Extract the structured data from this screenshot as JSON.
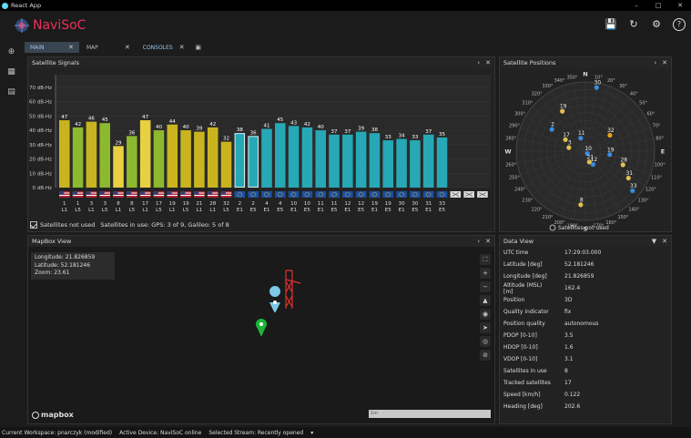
{
  "window": {
    "title": "React App",
    "controls": [
      "–",
      "□",
      "✕"
    ]
  },
  "header": {
    "brand": "NaviSoC"
  },
  "tabs": [
    {
      "label": "MAIN",
      "active": true
    },
    {
      "label": "MAP",
      "active": false
    },
    {
      "label": "CONSOLES",
      "active": false
    }
  ],
  "panels": {
    "signals": "Satellite Signals",
    "positions": "Satellite Positions",
    "map": "MapBox View",
    "dataview": "Data View"
  },
  "signals_footer": {
    "checkbox_label": "Satellites not used",
    "in_use": "Satellites in use: GPS: 3 of 9, Galileo: 5 of 8"
  },
  "chart_data": {
    "type": "bar",
    "ylabel_unit": "dB-Hz",
    "y_ticks": [
      "0 dB-Hz",
      "10 dB-Hz",
      "20 dB-Hz",
      "30 dB-Hz",
      "40 dB-Hz",
      "50 dB-Hz",
      "60 dB-Hz",
      "70 dB-Hz"
    ],
    "ylim": [
      0,
      75
    ],
    "values": [
      47,
      42,
      46,
      45,
      29,
      36,
      47,
      40,
      44,
      40,
      39,
      42,
      32,
      38,
      36,
      41,
      45,
      43,
      42,
      40,
      37,
      37,
      39,
      38,
      33,
      34,
      33,
      37,
      35
    ],
    "ids": [
      "1",
      "1",
      "3",
      "3",
      "8",
      "8",
      "17",
      "17",
      "19",
      "19",
      "21",
      "28",
      "32",
      "2",
      "2",
      "4",
      "4",
      "10",
      "10",
      "11",
      "11",
      "12",
      "12",
      "19",
      "19",
      "30",
      "30",
      "31",
      "33"
    ],
    "bands": [
      "L1",
      "L5",
      "L1",
      "L5",
      "L1",
      "L5",
      "L1",
      "L5",
      "L1",
      "L5",
      "L1",
      "L1",
      "L5",
      "E1",
      "E5",
      "E1",
      "E5",
      "E1",
      "E5",
      "E1",
      "E5",
      "E1",
      "E5",
      "E1",
      "E5",
      "E1",
      "E5",
      "E1",
      "E5"
    ],
    "colors": [
      "#c9b420",
      "#8db92e",
      "#c9b420",
      "#8db92e",
      "#e8d040",
      "#8db92e",
      "#e8d040",
      "#8db92e",
      "#c9b420",
      "#c9b420",
      "#c9b420",
      "#c9b420",
      "#c9b420",
      "#27a8b6",
      "#27a8b6",
      "#27a8b6",
      "#27a8b6",
      "#27a8b6",
      "#27a8b6",
      "#27a8b6",
      "#27a8b6",
      "#27a8b6",
      "#27a8b6",
      "#27a8b6",
      "#27a8b6",
      "#27a8b6",
      "#27a8b6",
      "#27a8b6",
      "#27a8b6"
    ],
    "not_used_slots": 3
  },
  "polar": {
    "compass": [
      "N",
      "E",
      "S",
      "W"
    ],
    "legend": "Satellites not used",
    "satellites": [
      {
        "id": "30",
        "az": 10,
        "el": 84,
        "color": "#3b8be0"
      },
      {
        "id": "2",
        "az": 303,
        "el": 52,
        "color": "#3b8be0"
      },
      {
        "id": "19",
        "az": 330,
        "el": 60,
        "color": "#e0c050"
      },
      {
        "id": "17",
        "az": 300,
        "el": 30,
        "color": "#e0c050"
      },
      {
        "id": "32",
        "az": 57,
        "el": 38,
        "color": "#e8a020"
      },
      {
        "id": "11",
        "az": 340,
        "el": 18,
        "color": "#3b8be0"
      },
      {
        "id": "3",
        "az": 282,
        "el": 22,
        "color": "#e0c050"
      },
      {
        "id": "19",
        "az": 98,
        "el": 32,
        "color": "#3b8be0"
      },
      {
        "id": "10",
        "az": 140,
        "el": 4,
        "color": "#3b8be0"
      },
      {
        "id": "28",
        "az": 110,
        "el": 52,
        "color": "#e0c050"
      },
      {
        "id": "21",
        "az": 160,
        "el": 15,
        "color": "#e0c050"
      },
      {
        "id": "12",
        "az": 150,
        "el": 20,
        "color": "#3b8be0"
      },
      {
        "id": "31",
        "az": 122,
        "el": 66,
        "color": "#e0c050"
      },
      {
        "id": "33",
        "az": 130,
        "el": 80,
        "color": "#3b8be0"
      },
      {
        "id": "8",
        "az": 185,
        "el": 70,
        "color": "#e0c050"
      }
    ],
    "az_labels": [
      "10°",
      "20°",
      "30°",
      "40°",
      "50°",
      "60°",
      "70°",
      "80°",
      "100°",
      "110°",
      "120°",
      "130°",
      "140°",
      "150°",
      "160°",
      "170°",
      "190°",
      "200°",
      "210°",
      "220°",
      "230°",
      "240°",
      "250°",
      "260°",
      "280°",
      "290°",
      "300°",
      "310°",
      "320°",
      "330°",
      "340°",
      "350°"
    ]
  },
  "map": {
    "coords": [
      "Longitude: 21.826859",
      "Latitude: 52.181246",
      "Zoom: 23.61"
    ],
    "brand": "mapbox",
    "scale": "1m"
  },
  "dataview": [
    {
      "k": "UTC time",
      "v": "17:29:03.000"
    },
    {
      "k": "Latitude [deg]",
      "v": "52.181246"
    },
    {
      "k": "Longitude [deg]",
      "v": "21.826859"
    },
    {
      "k": "Altitude (MSL) [m]",
      "v": "162.4"
    },
    {
      "k": "Position",
      "v": "3D"
    },
    {
      "k": "Quality indicator",
      "v": "fix"
    },
    {
      "k": "Position quality",
      "v": "autonomous"
    },
    {
      "k": "PDOP [0-10]",
      "v": "3.5"
    },
    {
      "k": "HDOP [0-10]",
      "v": "1.6"
    },
    {
      "k": "VDOP [0-10]",
      "v": "3.1"
    },
    {
      "k": "Satellites in use",
      "v": "8"
    },
    {
      "k": "Tracked satellites",
      "v": "17"
    },
    {
      "k": "Speed [km/h]",
      "v": "0.122"
    },
    {
      "k": "Heading [deg]",
      "v": "202.6"
    }
  ],
  "status": {
    "workspace": "Current Workspace: pnarczyk (modified)",
    "device": "Active Device: NaviSoC online",
    "stream": "Selected Stream: Recently opened"
  }
}
